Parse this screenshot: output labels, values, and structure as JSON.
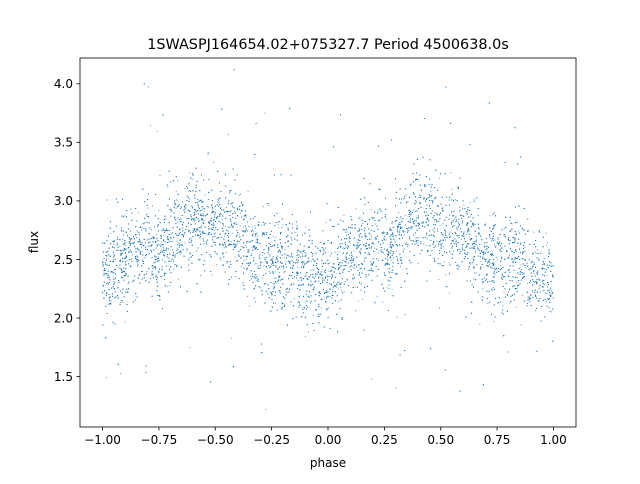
{
  "chart_data": {
    "type": "scatter",
    "title": "1SWASPJ164654.02+075327.7 Period 4500638.0s",
    "xlabel": "phase",
    "ylabel": "flux",
    "xlim": [
      -1.1,
      1.1
    ],
    "ylim": [
      1.07,
      4.22
    ],
    "xticks": [
      -1.0,
      -0.75,
      -0.5,
      -0.25,
      0.0,
      0.25,
      0.5,
      0.75,
      1.0
    ],
    "xtick_labels": [
      "−1.00",
      "−0.75",
      "−0.50",
      "−0.25",
      "0.00",
      "0.25",
      "0.50",
      "0.75",
      "1.00"
    ],
    "yticks": [
      1.5,
      2.0,
      2.5,
      3.0,
      3.5,
      4.0
    ],
    "ytick_labels": [
      "1.5",
      "2.0",
      "2.5",
      "3.0",
      "3.5",
      "4.0"
    ],
    "grid": false,
    "legend": "none",
    "marker_color": "#1f77b4",
    "phase_range": [
      -1.0,
      1.0
    ],
    "profile": {
      "phase": [
        0.0,
        0.05,
        0.1,
        0.15,
        0.2,
        0.25,
        0.3,
        0.35,
        0.4,
        0.45,
        0.5,
        0.55,
        0.6,
        0.65,
        0.7,
        0.75,
        0.8,
        0.85,
        0.9,
        0.95,
        1.0
      ],
      "median_flux": [
        2.33,
        2.4,
        2.5,
        2.58,
        2.62,
        2.58,
        2.68,
        2.8,
        2.87,
        2.84,
        2.78,
        2.74,
        2.72,
        2.62,
        2.52,
        2.45,
        2.48,
        2.45,
        2.38,
        2.33,
        2.33
      ]
    },
    "scatter_std": 0.2
  }
}
